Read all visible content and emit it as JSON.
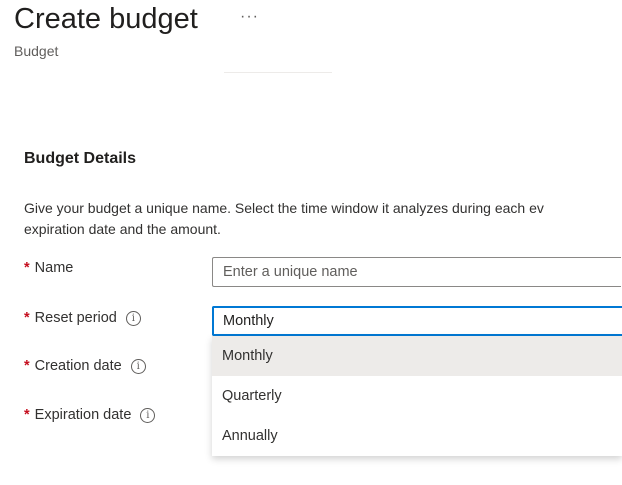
{
  "header": {
    "title": "Create budget",
    "more_label": "···",
    "subtitle": "Budget"
  },
  "section": {
    "title": "Budget Details",
    "description_line1": "Give your budget a unique name. Select the time window it analyzes during each ev",
    "description_line2": "expiration date and the amount."
  },
  "form": {
    "required_marker": "*",
    "info_glyph": "i",
    "name": {
      "label": "Name",
      "placeholder": "Enter a unique name",
      "value": ""
    },
    "reset_period": {
      "label": "Reset period",
      "value": "Monthly",
      "options": [
        "Monthly",
        "Quarterly",
        "Annually"
      ],
      "highlighted": "Monthly"
    },
    "creation_date": {
      "label": "Creation date"
    },
    "expiration_date": {
      "label": "Expiration date"
    }
  },
  "colors": {
    "accent": "#0078d4",
    "required": "#c50f1f",
    "highlight": "#edebe9"
  }
}
